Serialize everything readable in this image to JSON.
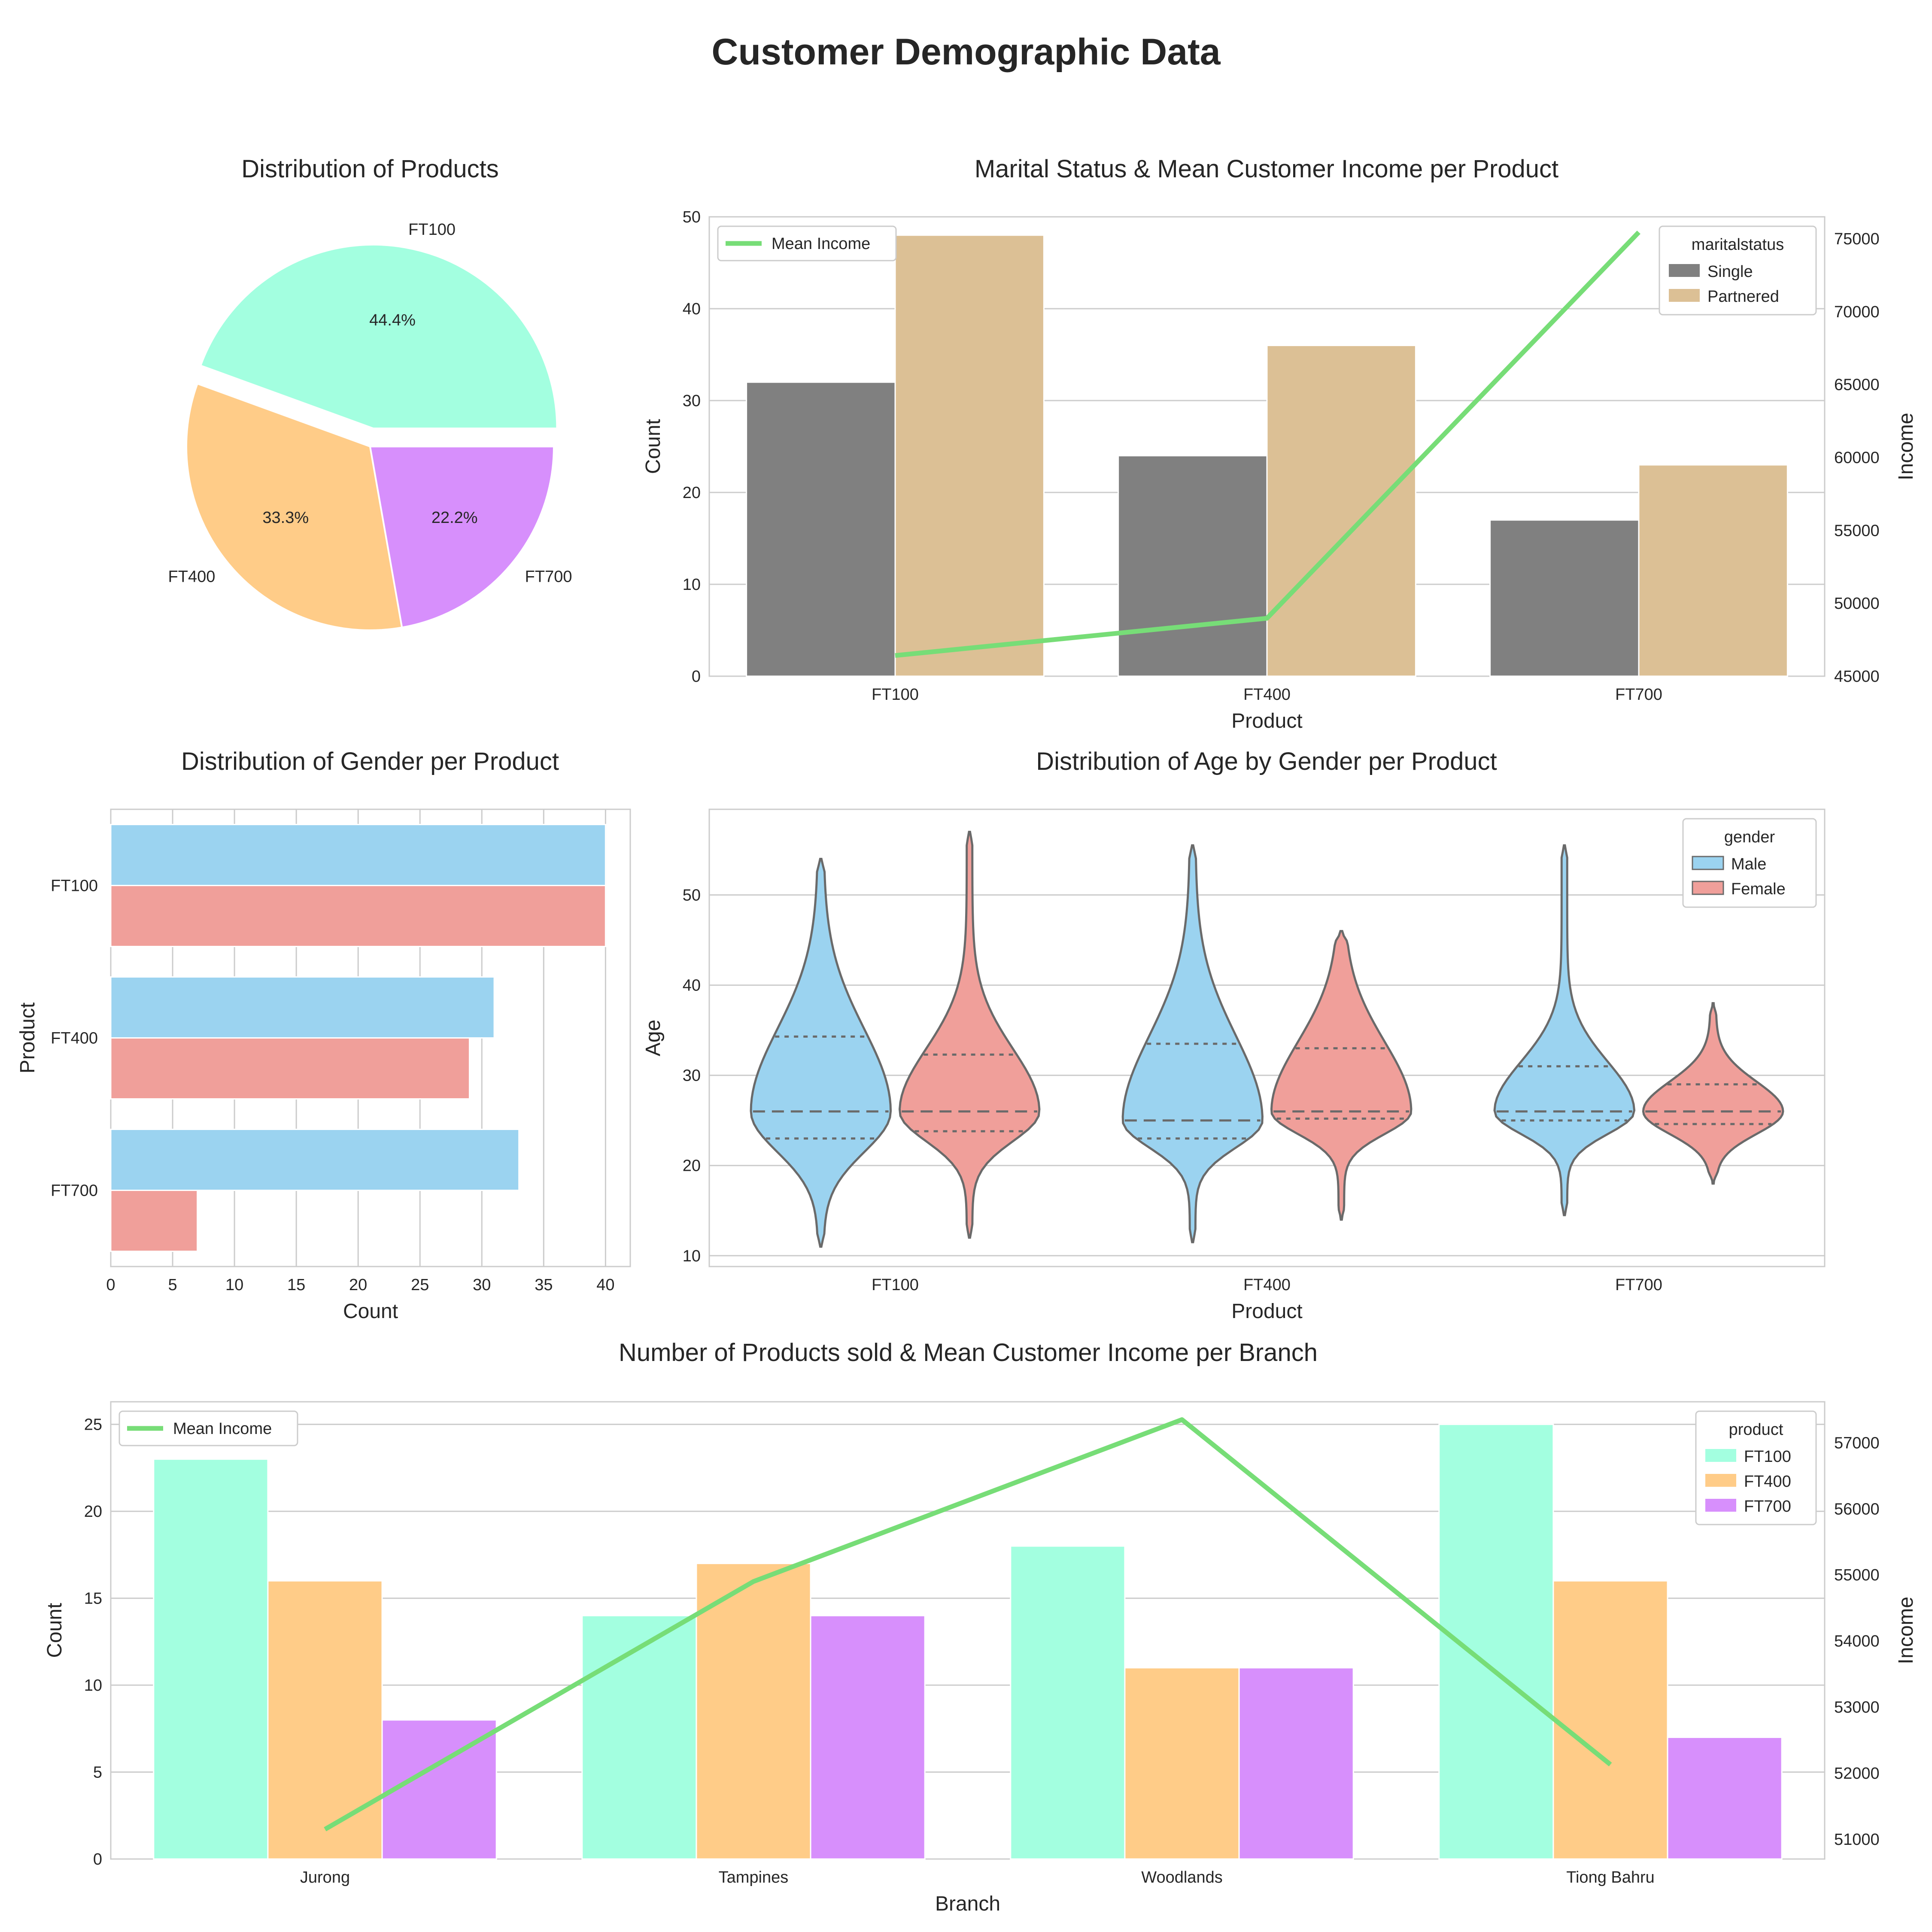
{
  "page": {
    "title": "Customer Demographic Data"
  },
  "colors": {
    "ft100": "#a3ffe0",
    "ft400": "#ffcc88",
    "ft700": "#d78ffc",
    "single": "#808080",
    "partnered": "#dcc095",
    "male": "#9bd3f0",
    "female": "#f09f9a",
    "mean_income_line": "#77dd77",
    "violet_outline": "#6a6a6a"
  },
  "chart_data": [
    {
      "id": "pie",
      "type": "pie",
      "title": "Distribution of Products",
      "labels": [
        "FT100",
        "FT400",
        "FT700"
      ],
      "values": [
        44.4,
        33.3,
        22.2
      ],
      "pct_labels": [
        "44.4%",
        "33.3%",
        "22.2%"
      ],
      "explode": [
        true,
        false,
        false
      ]
    },
    {
      "id": "marital",
      "type": "bar",
      "title": "Marital Status & Mean Customer Income per Product",
      "xlabel": "Product",
      "ylabel": "Count",
      "y2label": "Income",
      "categories": [
        "FT100",
        "FT400",
        "FT700"
      ],
      "ylim": [
        0,
        50
      ],
      "yticks": [
        0,
        10,
        20,
        30,
        40,
        50
      ],
      "y2lim": [
        45000,
        76500
      ],
      "y2ticks": [
        45000,
        50000,
        55000,
        60000,
        65000,
        70000,
        75000
      ],
      "legend_title": "maritalstatus",
      "legend_position": "upper-right",
      "series": [
        {
          "name": "Single",
          "values": [
            32,
            24,
            17
          ]
        },
        {
          "name": "Partnered",
          "values": [
            48,
            36,
            23
          ]
        }
      ],
      "line": {
        "name": "Mean Income",
        "values": [
          46418,
          48973,
          75442
        ]
      },
      "line_legend_position": "upper-left"
    },
    {
      "id": "gender",
      "type": "bar",
      "orientation": "horizontal",
      "title": "Distribution of Gender per Product",
      "xlabel": "Count",
      "ylabel": "Product",
      "categories": [
        "FT100",
        "FT400",
        "FT700"
      ],
      "xlim": [
        0,
        42
      ],
      "xticks": [
        0,
        5,
        10,
        15,
        20,
        25,
        30,
        35,
        40
      ],
      "series": [
        {
          "name": "Male",
          "values": [
            40,
            31,
            33
          ]
        },
        {
          "name": "Female",
          "values": [
            40,
            29,
            7
          ]
        }
      ]
    },
    {
      "id": "violin",
      "type": "violin",
      "title": "Distribution of Age by Gender per Product",
      "xlabel": "Product",
      "ylabel": "Age",
      "categories": [
        "FT100",
        "FT400",
        "FT700"
      ],
      "ylim": [
        8.8,
        59.5
      ],
      "yticks": [
        10,
        20,
        30,
        40,
        50
      ],
      "legend_title": "gender",
      "legend_position": "upper-right",
      "series": [
        {
          "name": "Male",
          "stats": [
            {
              "min": 11,
              "max": 54,
              "q1": 23,
              "median": 26,
              "q3": 34.3
            },
            {
              "min": 11.5,
              "max": 55.5,
              "q1": 23,
              "median": 25,
              "q3": 33.5
            },
            {
              "min": 14.5,
              "max": 55.5,
              "q1": 25,
              "median": 26,
              "q3": 31
            }
          ]
        },
        {
          "name": "Female",
          "stats": [
            {
              "min": 12,
              "max": 57,
              "q1": 23.8,
              "median": 26,
              "q3": 32.3
            },
            {
              "min": 14,
              "max": 46,
              "q1": 25.2,
              "median": 26,
              "q3": 33
            },
            {
              "min": 18,
              "max": 38,
              "q1": 24.6,
              "median": 26,
              "q3": 29
            }
          ]
        }
      ]
    },
    {
      "id": "branch",
      "type": "bar",
      "title": "Number of Products sold & Mean Customer Income per Branch",
      "xlabel": "Branch",
      "ylabel": "Count",
      "y2label": "Income",
      "categories": [
        "Jurong",
        "Tampines",
        "Woodlands",
        "Tiong Bahru"
      ],
      "ylim": [
        0,
        26.3
      ],
      "yticks": [
        0,
        5,
        10,
        15,
        20,
        25
      ],
      "y2lim": [
        50700,
        57620
      ],
      "y2ticks": [
        51000,
        52000,
        53000,
        54000,
        55000,
        56000,
        57000
      ],
      "legend_title": "product",
      "legend_position": "upper-right",
      "series": [
        {
          "name": "FT100",
          "values": [
            23,
            14,
            18,
            25
          ]
        },
        {
          "name": "FT400",
          "values": [
            16,
            17,
            11,
            16
          ]
        },
        {
          "name": "FT700",
          "values": [
            8,
            14,
            11,
            7
          ]
        }
      ],
      "line": {
        "name": "Mean Income",
        "values": [
          51150,
          54900,
          57350,
          52130
        ]
      },
      "line_legend_position": "upper-left"
    }
  ]
}
